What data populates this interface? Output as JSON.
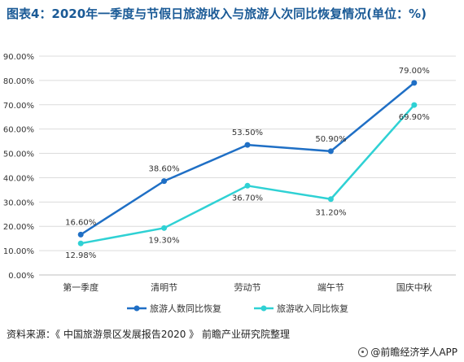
{
  "title": "图表4：2020年一季度与节假日旅游收入与旅游人次同比恢复情况(单位：%)",
  "source": "资料来源：《 中国旅游景区发展报告2020 》 前瞻产业研究院整理",
  "brand": "@前瞻经济学人APP",
  "chart_data": {
    "type": "line",
    "categories": [
      "第一季度",
      "清明节",
      "劳动节",
      "端午节",
      "国庆中秋"
    ],
    "ylim": [
      0,
      90
    ],
    "yticks": [
      "0.00%",
      "10.00%",
      "20.00%",
      "30.00%",
      "40.00%",
      "50.00%",
      "60.00%",
      "70.00%",
      "80.00%",
      "90.00%"
    ],
    "grid": true,
    "legend_position": "bottom",
    "series": [
      {
        "name": "旅游人数同比恢复",
        "color": "#1f6fc5",
        "values": [
          16.6,
          38.6,
          53.5,
          50.9,
          79.0
        ],
        "labels": [
          "16.60%",
          "38.60%",
          "53.50%",
          "50.90%",
          "79.00%"
        ]
      },
      {
        "name": "旅游收入同比恢复",
        "color": "#2fd1d4",
        "values": [
          12.98,
          19.3,
          36.7,
          31.2,
          69.9
        ],
        "labels": [
          "12.98%",
          "19.30%",
          "36.70%",
          "31.20%",
          "69.90%"
        ]
      }
    ]
  }
}
